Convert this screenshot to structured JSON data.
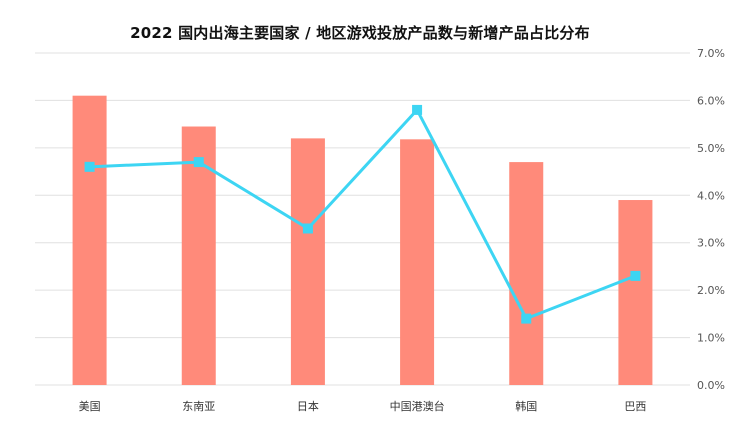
{
  "chart_data": {
    "type": "bar",
    "title": "2022 国内出海主要国家 / 地区游戏投放产品数与新增产品占比分布",
    "categories": [
      "美国",
      "东南亚",
      "日本",
      "中国港澳台",
      "韩国",
      "巴西"
    ],
    "series": [
      {
        "type": "bar",
        "values": [
          6.1,
          5.45,
          5.2,
          5.18,
          4.7,
          3.9
        ]
      },
      {
        "type": "line",
        "values": [
          4.6,
          4.7,
          3.3,
          5.8,
          1.4,
          2.3
        ]
      }
    ],
    "right_axis": {
      "ylim": [
        0,
        7
      ],
      "ticks": [
        "0.0%",
        "1.0%",
        "2.0%",
        "3.0%",
        "4.0%",
        "5.0%",
        "6.0%",
        "7.0%"
      ]
    },
    "grid": true,
    "colors": {
      "bar": "#FF8A7A",
      "line": "#3DD5F3",
      "grid": "#E0E0E0"
    }
  }
}
